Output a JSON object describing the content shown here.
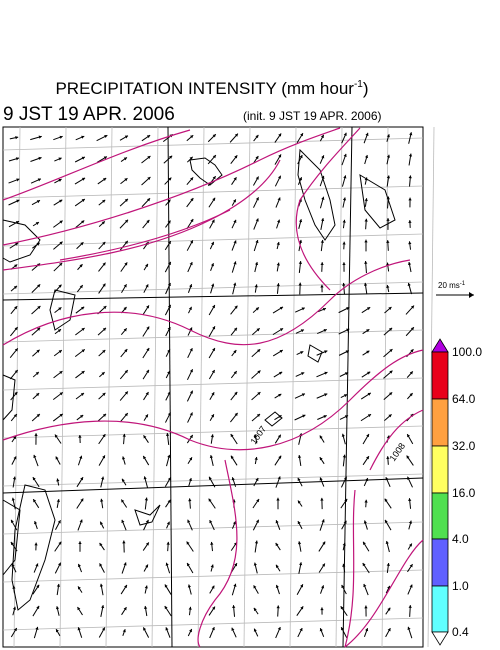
{
  "header": {
    "title": {
      "text": "PRECIPITATION INTENSITY (mm hour",
      "sup": "-1",
      "tail": ")"
    },
    "valid_time": "9 JST 19 APR. 2006",
    "init_time": "(init. 9 JST 19 APR. 2006)"
  },
  "reference_vector": {
    "text": "20 ms",
    "sup": "-1"
  },
  "colorbar": {
    "labels": [
      "100.0",
      "64.0",
      "32.0",
      "16.0",
      "4.0",
      "1.0",
      "0.4"
    ]
  },
  "contour_labels": [
    "1007",
    "1008"
  ]
}
